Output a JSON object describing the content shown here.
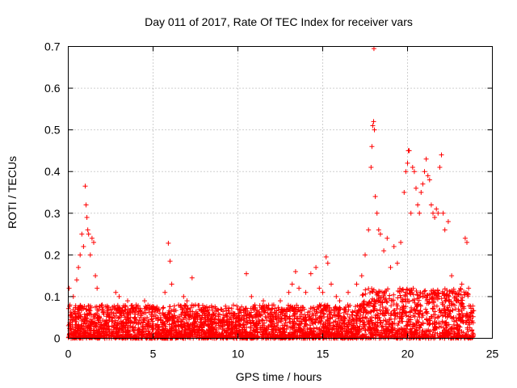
{
  "chart_data": {
    "type": "scatter",
    "title": "Day 011 of 2017, Rate Of TEC Index for receiver vars",
    "xlabel": "GPS time / hours",
    "ylabel": "ROTI / TECUs",
    "xlim": [
      0,
      25
    ],
    "ylim": [
      0,
      0.7
    ],
    "x_ticks": [
      0,
      5,
      10,
      15,
      20,
      25
    ],
    "x_tick_labels": [
      "0",
      "5",
      "10",
      "15",
      "20",
      "25"
    ],
    "y_ticks": [
      0,
      0.1,
      0.2,
      0.3,
      0.4,
      0.5,
      0.6,
      0.7
    ],
    "y_tick_labels": [
      "0",
      "0.1",
      "0.2",
      "0.3",
      "0.4",
      "0.5",
      "0.6",
      "0.7"
    ],
    "grid": true,
    "marker": "+",
    "series": [
      {
        "name": "ROTI",
        "color": "#ff0000",
        "points": [
          [
            0.05,
            0.12
          ],
          [
            0.1,
            0.08
          ],
          [
            0.2,
            0.05
          ],
          [
            0.3,
            0.1
          ],
          [
            0.4,
            0.06
          ],
          [
            0.5,
            0.14
          ],
          [
            0.6,
            0.17
          ],
          [
            0.7,
            0.2
          ],
          [
            0.8,
            0.25
          ],
          [
            0.9,
            0.22
          ],
          [
            1.0,
            0.365
          ],
          [
            1.05,
            0.32
          ],
          [
            1.1,
            0.29
          ],
          [
            1.15,
            0.26
          ],
          [
            1.2,
            0.25
          ],
          [
            1.3,
            0.2
          ],
          [
            1.4,
            0.24
          ],
          [
            1.5,
            0.23
          ],
          [
            1.6,
            0.15
          ],
          [
            1.7,
            0.12
          ],
          [
            2.0,
            0.08
          ],
          [
            2.5,
            0.07
          ],
          [
            2.8,
            0.11
          ],
          [
            3.0,
            0.1
          ],
          [
            3.5,
            0.09
          ],
          [
            4.0,
            0.08
          ],
          [
            4.5,
            0.09
          ],
          [
            5.0,
            0.07
          ],
          [
            5.4,
            0.06
          ],
          [
            5.7,
            0.11
          ],
          [
            5.9,
            0.228
          ],
          [
            6.0,
            0.185
          ],
          [
            6.1,
            0.13
          ],
          [
            6.5,
            0.08
          ],
          [
            6.8,
            0.1
          ],
          [
            7.0,
            0.09
          ],
          [
            7.3,
            0.145
          ],
          [
            7.5,
            0.08
          ],
          [
            8.0,
            0.06
          ],
          [
            8.5,
            0.05
          ],
          [
            9.0,
            0.07
          ],
          [
            9.5,
            0.06
          ],
          [
            10.0,
            0.07
          ],
          [
            10.5,
            0.155
          ],
          [
            10.8,
            0.1
          ],
          [
            11.0,
            0.08
          ],
          [
            11.5,
            0.09
          ],
          [
            12.0,
            0.07
          ],
          [
            12.5,
            0.09
          ],
          [
            13.0,
            0.11
          ],
          [
            13.2,
            0.13
          ],
          [
            13.4,
            0.16
          ],
          [
            13.6,
            0.12
          ],
          [
            14.0,
            0.11
          ],
          [
            14.3,
            0.155
          ],
          [
            14.6,
            0.17
          ],
          [
            14.8,
            0.12
          ],
          [
            15.0,
            0.11
          ],
          [
            15.2,
            0.195
          ],
          [
            15.3,
            0.18
          ],
          [
            15.5,
            0.13
          ],
          [
            15.8,
            0.1
          ],
          [
            16.0,
            0.09
          ],
          [
            16.5,
            0.11
          ],
          [
            17.0,
            0.13
          ],
          [
            17.3,
            0.15
          ],
          [
            17.5,
            0.2
          ],
          [
            17.7,
            0.26
          ],
          [
            17.85,
            0.41
          ],
          [
            17.9,
            0.46
          ],
          [
            17.95,
            0.51
          ],
          [
            18.0,
            0.52
          ],
          [
            18.02,
            0.695
          ],
          [
            18.05,
            0.5
          ],
          [
            18.1,
            0.34
          ],
          [
            18.2,
            0.3
          ],
          [
            18.3,
            0.26
          ],
          [
            18.4,
            0.25
          ],
          [
            18.6,
            0.21
          ],
          [
            18.8,
            0.24
          ],
          [
            19.0,
            0.17
          ],
          [
            19.2,
            0.22
          ],
          [
            19.4,
            0.18
          ],
          [
            19.6,
            0.23
          ],
          [
            19.8,
            0.35
          ],
          [
            19.9,
            0.4
          ],
          [
            20.0,
            0.42
          ],
          [
            20.05,
            0.45
          ],
          [
            20.1,
            0.45
          ],
          [
            20.2,
            0.3
          ],
          [
            20.3,
            0.41
          ],
          [
            20.4,
            0.4
          ],
          [
            20.5,
            0.36
          ],
          [
            20.6,
            0.32
          ],
          [
            20.7,
            0.3
          ],
          [
            20.8,
            0.35
          ],
          [
            20.9,
            0.37
          ],
          [
            21.0,
            0.4
          ],
          [
            21.1,
            0.43
          ],
          [
            21.2,
            0.39
          ],
          [
            21.3,
            0.38
          ],
          [
            21.4,
            0.32
          ],
          [
            21.5,
            0.3
          ],
          [
            21.6,
            0.29
          ],
          [
            21.7,
            0.31
          ],
          [
            21.8,
            0.3
          ],
          [
            21.9,
            0.41
          ],
          [
            22.0,
            0.44
          ],
          [
            22.1,
            0.3
          ],
          [
            22.2,
            0.26
          ],
          [
            22.4,
            0.28
          ],
          [
            22.6,
            0.15
          ],
          [
            22.8,
            0.1
          ],
          [
            23.0,
            0.09
          ],
          [
            23.2,
            0.13
          ],
          [
            23.4,
            0.24
          ],
          [
            23.5,
            0.23
          ],
          [
            23.6,
            0.12
          ],
          [
            23.8,
            0.06
          ]
        ]
      }
    ],
    "band": {
      "description": "dense low-level ROTI values along the x axis",
      "x_range": [
        0,
        23.9
      ],
      "y_range": [
        0,
        0.08
      ]
    }
  }
}
